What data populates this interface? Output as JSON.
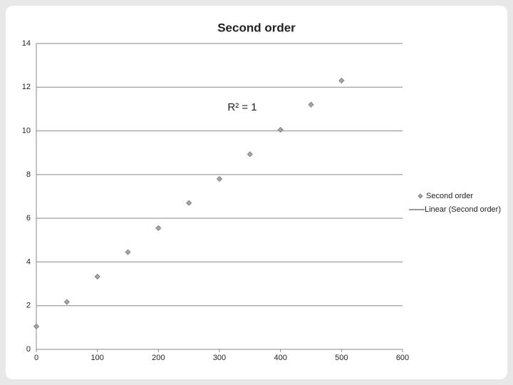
{
  "chart_data": {
    "type": "scatter",
    "title": "Second order",
    "annotation": "R² = 1",
    "x": [
      0,
      50,
      100,
      150,
      200,
      250,
      300,
      350,
      400,
      450,
      500
    ],
    "series": [
      {
        "name": "Second order",
        "color": "#a0a8ae",
        "values": [
          1.05,
          2.17,
          3.33,
          4.45,
          5.55,
          6.7,
          7.8,
          8.93,
          10.05,
          11.2,
          12.3
        ]
      }
    ],
    "trendline": {
      "name": "Linear (Second order)",
      "color": "#333333"
    },
    "xlim": [
      0,
      600
    ],
    "xticks": [
      0,
      100,
      200,
      300,
      400,
      500,
      600
    ],
    "ylim": [
      0,
      14
    ],
    "yticks": [
      0,
      2,
      4,
      6,
      8,
      10,
      12,
      14
    ],
    "grid": true,
    "legend": "right"
  }
}
